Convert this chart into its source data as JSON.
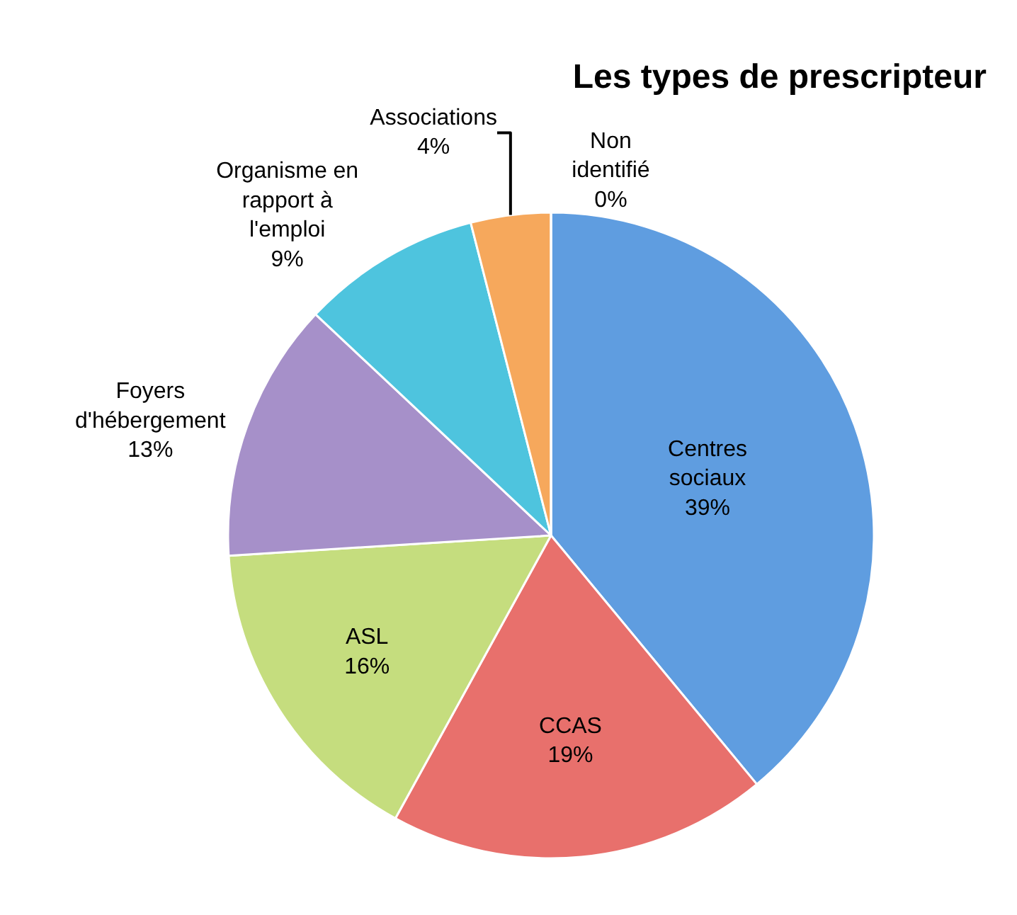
{
  "chart_data": {
    "type": "pie",
    "title": "Les types de prescripteur",
    "categories": [
      "Centres sociaux",
      "CCAS",
      "ASL",
      "Foyers d'hébergement",
      "Organisme en rapport à l'emploi",
      "Associations",
      "Non identifié"
    ],
    "values": [
      39,
      19,
      16,
      13,
      9,
      4,
      0
    ],
    "value_labels": [
      "39%",
      "19%",
      "16%",
      "13%",
      "9%",
      "4%",
      "0%"
    ],
    "colors": [
      "#5f9de0",
      "#e8706c",
      "#c5dd7e",
      "#a690c9",
      "#4ec4de",
      "#f6a85c",
      "#a9c4e8"
    ],
    "legend": false
  }
}
